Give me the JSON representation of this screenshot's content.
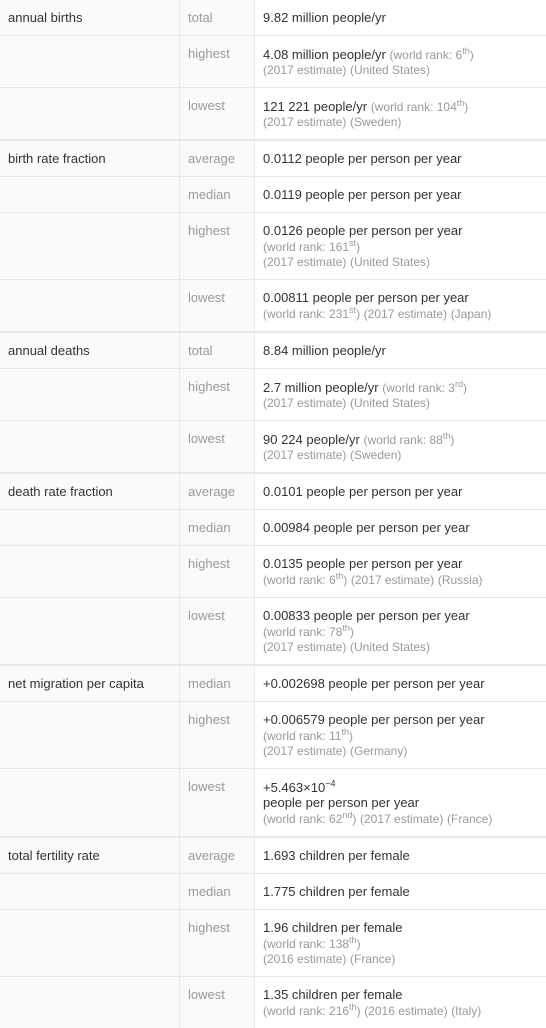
{
  "colors": {
    "border": "#e8e8e8",
    "text": "#333333",
    "muted": "#999999",
    "row_alt_bg": "#fafafa",
    "row_bg": "#ffffff"
  },
  "fontsize": {
    "body": 13,
    "meta": 12,
    "sup": 9
  },
  "groups": [
    {
      "name": "annual births",
      "rows": [
        {
          "stat": "total",
          "value": "9.82 million people/yr"
        },
        {
          "stat": "highest",
          "value": "4.08 million people/yr",
          "rank": "world rank: 6",
          "rank_sup": "th",
          "estimate": "(2017 estimate)",
          "country": "(United States)"
        },
        {
          "stat": "lowest",
          "value": "121 221 people/yr",
          "rank": "world rank: 104",
          "rank_sup": "th",
          "estimate": "(2017 estimate)",
          "country": "(Sweden)"
        }
      ]
    },
    {
      "name": "birth rate fraction",
      "rows": [
        {
          "stat": "average",
          "value": "0.0112 people per person per year"
        },
        {
          "stat": "median",
          "value": "0.0119 people per person per year"
        },
        {
          "stat": "highest",
          "value": "0.0126 people per person per year",
          "rank": "world rank: 161",
          "rank_sup": "st",
          "estimate": "(2017 estimate)",
          "country": "(United States)"
        },
        {
          "stat": "lowest",
          "value": "0.00811 people per person per year",
          "rank": "world rank: 231",
          "rank_sup": "st",
          "estimate": "(2017 estimate)",
          "country": "(Japan)"
        }
      ]
    },
    {
      "name": "annual deaths",
      "rows": [
        {
          "stat": "total",
          "value": "8.84 million people/yr"
        },
        {
          "stat": "highest",
          "value": "2.7 million people/yr",
          "rank": "world rank: 3",
          "rank_sup": "rd",
          "estimate": "(2017 estimate)",
          "country": "(United States)"
        },
        {
          "stat": "lowest",
          "value": "90 224 people/yr",
          "rank": "world rank: 88",
          "rank_sup": "th",
          "estimate": "(2017 estimate)",
          "country": "(Sweden)"
        }
      ]
    },
    {
      "name": "death rate fraction",
      "rows": [
        {
          "stat": "average",
          "value": "0.0101 people per person per year"
        },
        {
          "stat": "median",
          "value": "0.00984 people per person per year"
        },
        {
          "stat": "highest",
          "value": "0.0135 people per person per year",
          "rank": "world rank: 6",
          "rank_sup": "th",
          "estimate": "(2017 estimate)",
          "country": "(Russia)"
        },
        {
          "stat": "lowest",
          "value": "0.00833 people per person per year",
          "rank": "world rank: 78",
          "rank_sup": "th",
          "estimate": "(2017 estimate)",
          "country": "(United States)"
        }
      ]
    },
    {
      "name": "net migration per capita",
      "rows": [
        {
          "stat": "median",
          "value": "+0.002698 people per person per year"
        },
        {
          "stat": "highest",
          "value": "+0.006579 people per person per year",
          "rank": "world rank: 11",
          "rank_sup": "th",
          "estimate": "(2017 estimate)",
          "country": "(Germany)"
        },
        {
          "stat": "lowest",
          "value_pre": "+5.463×10",
          "value_sup": "−4",
          "value_post": " people per person per year",
          "rank": "world rank: 62",
          "rank_sup": "nd",
          "estimate": "(2017 estimate)",
          "country": "(France)"
        }
      ]
    },
    {
      "name": "total fertility rate",
      "rows": [
        {
          "stat": "average",
          "value": "1.693 children per female"
        },
        {
          "stat": "median",
          "value": "1.775 children per female"
        },
        {
          "stat": "highest",
          "value": "1.96 children per female",
          "rank": "world rank: 138",
          "rank_sup": "th",
          "estimate": "(2016 estimate)",
          "country": "(France)"
        },
        {
          "stat": "lowest",
          "value": "1.35 children per female",
          "rank": "world rank: 216",
          "rank_sup": "th",
          "estimate": "(2016 estimate)",
          "country": "(Italy)"
        }
      ]
    }
  ]
}
